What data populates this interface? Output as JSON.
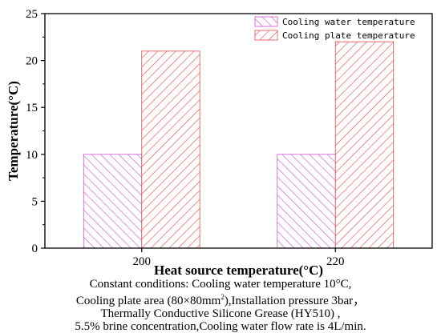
{
  "chart_data": {
    "type": "bar",
    "categories": [
      "200",
      "220"
    ],
    "series": [
      {
        "name": "Cooling water temperature",
        "values": [
          10,
          10
        ],
        "color": "#d24fd2",
        "hatch": "back-diagonal"
      },
      {
        "name": "Cooling plate temperature",
        "values": [
          21,
          22
        ],
        "color": "#e8474a",
        "hatch": "diagonal"
      }
    ],
    "title": "",
    "xlabel": "Heat source temperature(°C)",
    "ylabel": "Temperature(°C)",
    "ylim": [
      0,
      25
    ],
    "yticks": [
      0,
      5,
      10,
      15,
      20,
      25
    ],
    "grid": false,
    "legend_position": "top-right"
  },
  "caption": {
    "line1": "Constant conditions: Cooling water temperature 10°C,",
    "line2_prefix": "Cooling plate area (80×80mm",
    "line2_sup": "2",
    "line2_suffix": "),Installation pressure 3bar，",
    "line3": "Thermally Conductive Silicone Grease (HY510) ,",
    "line4": "5.5% brine concentration,Cooling water flow rate is 4L/min."
  }
}
